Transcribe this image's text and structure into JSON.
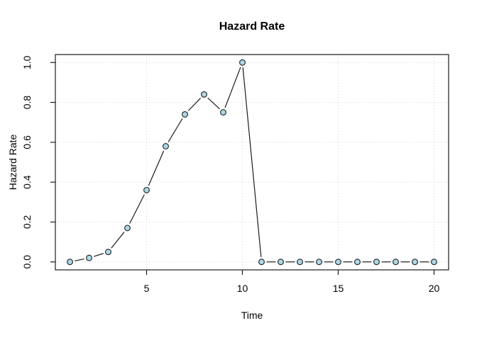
{
  "chart_data": {
    "type": "line",
    "style": "points-and-lines with gaps (R type='b', open circle markers)",
    "title": "Hazard Rate",
    "xlabel": "Time",
    "ylabel": "Hazard Rate",
    "x": [
      1,
      2,
      3,
      4,
      5,
      6,
      7,
      8,
      9,
      10,
      11,
      12,
      13,
      14,
      15,
      16,
      17,
      18,
      19,
      20
    ],
    "y": [
      0.0,
      0.02,
      0.05,
      0.17,
      0.36,
      0.58,
      0.74,
      0.84,
      0.75,
      1.0,
      0.0,
      0.0,
      0.0,
      0.0,
      0.0,
      0.0,
      0.0,
      0.0,
      0.0,
      0.0
    ],
    "x_ticks": [
      5,
      10,
      15,
      20
    ],
    "y_ticks": [
      {
        "v": 0.0,
        "label": "0.0"
      },
      {
        "v": 0.2,
        "label": "0.2"
      },
      {
        "v": 0.4,
        "label": "0.4"
      },
      {
        "v": 0.6,
        "label": "0.6"
      },
      {
        "v": 0.8,
        "label": "0.8"
      },
      {
        "v": 1.0,
        "label": "1.0"
      }
    ],
    "xlim": [
      0.24,
      20.76
    ],
    "ylim": [
      -0.04,
      1.04
    ],
    "grid": true,
    "grid_style": "dotted",
    "legend": "none",
    "colors": {
      "point_fill": "#ADD8E6",
      "point_stroke": "#1c1c1c",
      "line": "#1c1c1c",
      "grid": "#d4d4d4",
      "box": "#1c1c1c",
      "text": "#000000"
    }
  }
}
